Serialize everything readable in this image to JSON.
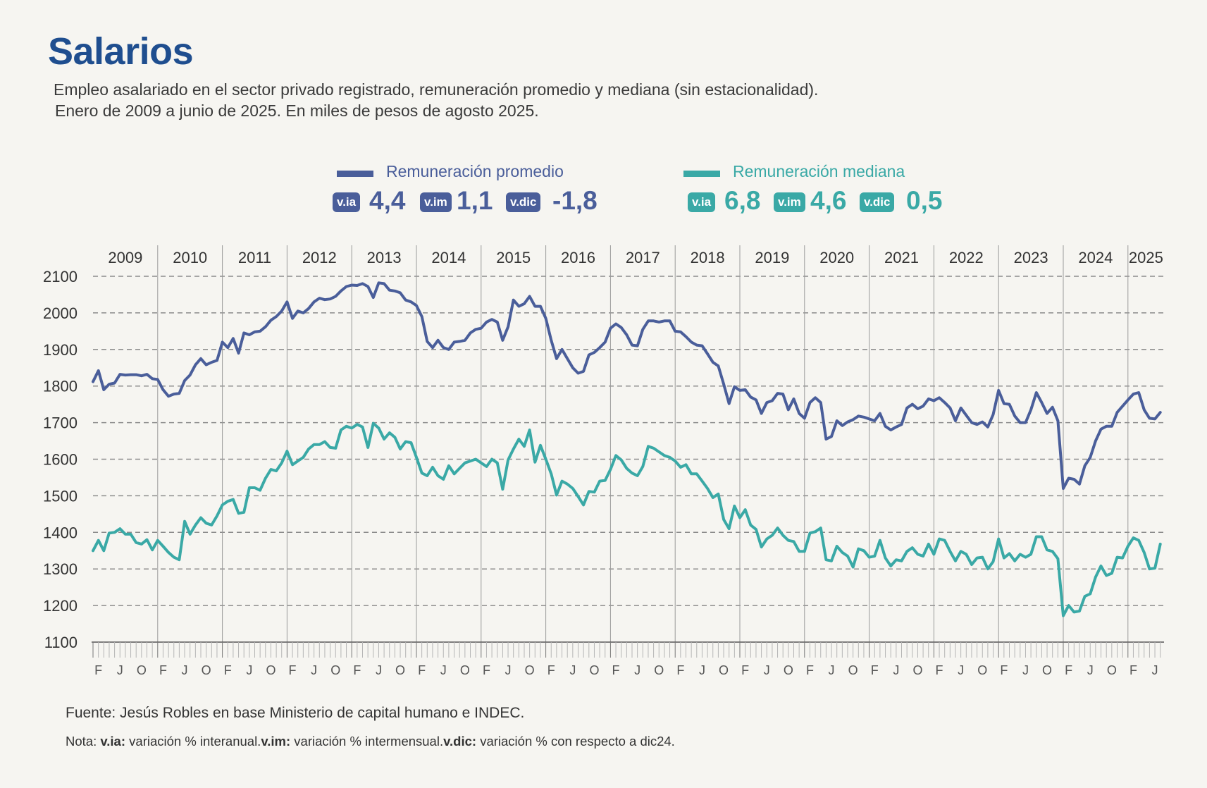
{
  "title": "Salarios",
  "subtitle_line1": "Empleo asalariado en el sector privado registrado, remuneración promedio y mediana (sin estacionalidad).",
  "subtitle_line2": "Enero de 2009 a junio de 2025. En miles de pesos de agosto 2025.",
  "legend": [
    {
      "label": "Remuneración promedio",
      "color": "#4a5e9a",
      "stats": [
        {
          "badge": "v.ia",
          "value": "4,4"
        },
        {
          "badge": "v.im",
          "value": "1,1"
        },
        {
          "badge": "v.dic",
          "value": "-1,8"
        }
      ]
    },
    {
      "label": "Remuneración mediana",
      "color": "#3aa9a6",
      "stats": [
        {
          "badge": "v.ia",
          "value": "6,8"
        },
        {
          "badge": "v.im",
          "value": "4,6"
        },
        {
          "badge": "v.dic",
          "value": "0,5"
        }
      ]
    }
  ],
  "source": "Fuente: Jesús Robles en base Ministerio de capital humano e INDEC.",
  "note": {
    "prefix": "Nota: ",
    "items": [
      {
        "term": "v.ia:",
        "text": " variación % interanual."
      },
      {
        "term": "v.im:",
        "text": " variación % intermensual."
      },
      {
        "term": "v.dic:",
        "text": " variación % con respecto a dic24."
      }
    ]
  },
  "chart_data": {
    "type": "line",
    "x_start": "2009-01",
    "x_end": "2025-06",
    "frequency": "monthly",
    "years": [
      "2009",
      "2010",
      "2011",
      "2012",
      "2013",
      "2014",
      "2015",
      "2016",
      "2017",
      "2018",
      "2019",
      "2020",
      "2021",
      "2022",
      "2023",
      "2024",
      "2025"
    ],
    "month_tick_labels": [
      "F",
      "J",
      "O"
    ],
    "ylim": [
      1100,
      2100
    ],
    "yticks": [
      2100,
      2000,
      1900,
      1800,
      1700,
      1600,
      1500,
      1400,
      1300,
      1200,
      1100
    ],
    "grid": "horizontal dashed",
    "legend_position": "top-center",
    "series": [
      {
        "name": "Remuneración promedio",
        "color": "#4a5e9a",
        "values": [
          1812,
          1842,
          1790,
          1805,
          1808,
          1832,
          1830,
          1831,
          1831,
          1828,
          1832,
          1820,
          1818,
          1790,
          1772,
          1778,
          1780,
          1815,
          1830,
          1858,
          1875,
          1858,
          1865,
          1870,
          1920,
          1905,
          1930,
          1890,
          1945,
          1940,
          1948,
          1950,
          1962,
          1980,
          1990,
          2005,
          2030,
          1985,
          2005,
          2000,
          2012,
          2030,
          2040,
          2036,
          2038,
          2045,
          2060,
          2072,
          2076,
          2075,
          2080,
          2072,
          2042,
          2082,
          2080,
          2062,
          2060,
          2055,
          2035,
          2030,
          2020,
          1990,
          1922,
          1905,
          1925,
          1905,
          1900,
          1920,
          1922,
          1925,
          1945,
          1955,
          1958,
          1975,
          1982,
          1975,
          1925,
          1962,
          2035,
          2018,
          2025,
          2045,
          2018,
          2018,
          1985,
          1925,
          1875,
          1900,
          1875,
          1850,
          1835,
          1840,
          1885,
          1892,
          1905,
          1920,
          1958,
          1970,
          1960,
          1940,
          1912,
          1910,
          1955,
          1978,
          1978,
          1975,
          1978,
          1978,
          1950,
          1948,
          1935,
          1920,
          1912,
          1910,
          1888,
          1865,
          1855,
          1805,
          1752,
          1798,
          1788,
          1790,
          1770,
          1762,
          1725,
          1755,
          1760,
          1780,
          1778,
          1735,
          1765,
          1725,
          1712,
          1755,
          1768,
          1755,
          1655,
          1662,
          1705,
          1692,
          1702,
          1708,
          1718,
          1715,
          1710,
          1705,
          1725,
          1690,
          1680,
          1688,
          1695,
          1740,
          1750,
          1738,
          1745,
          1765,
          1760,
          1768,
          1755,
          1740,
          1705,
          1740,
          1720,
          1700,
          1695,
          1702,
          1688,
          1722,
          1788,
          1752,
          1750,
          1718,
          1700,
          1700,
          1735,
          1782,
          1755,
          1725,
          1742,
          1705,
          1520,
          1548,
          1545,
          1532,
          1582,
          1605,
          1650,
          1682,
          1690,
          1690,
          1728,
          1745,
          1762,
          1778,
          1782,
          1735,
          1712,
          1710,
          1728
        ]
      },
      {
        "name": "Remuneración mediana",
        "color": "#3aa9a6",
        "values": [
          1350,
          1378,
          1350,
          1398,
          1400,
          1410,
          1395,
          1395,
          1372,
          1368,
          1380,
          1352,
          1378,
          1362,
          1345,
          1332,
          1325,
          1430,
          1395,
          1420,
          1440,
          1425,
          1420,
          1445,
          1475,
          1485,
          1490,
          1452,
          1455,
          1522,
          1522,
          1515,
          1548,
          1572,
          1568,
          1590,
          1622,
          1585,
          1595,
          1605,
          1628,
          1640,
          1640,
          1648,
          1632,
          1630,
          1680,
          1690,
          1685,
          1695,
          1688,
          1632,
          1698,
          1685,
          1655,
          1672,
          1660,
          1628,
          1648,
          1645,
          1605,
          1562,
          1555,
          1578,
          1555,
          1545,
          1582,
          1560,
          1575,
          1590,
          1595,
          1600,
          1590,
          1580,
          1600,
          1590,
          1518,
          1598,
          1628,
          1655,
          1635,
          1680,
          1592,
          1638,
          1600,
          1560,
          1502,
          1540,
          1532,
          1520,
          1498,
          1475,
          1512,
          1510,
          1540,
          1542,
          1572,
          1610,
          1598,
          1575,
          1562,
          1555,
          1580,
          1635,
          1630,
          1620,
          1610,
          1605,
          1595,
          1578,
          1585,
          1560,
          1560,
          1540,
          1520,
          1495,
          1505,
          1435,
          1410,
          1472,
          1440,
          1462,
          1420,
          1408,
          1360,
          1382,
          1392,
          1412,
          1392,
          1378,
          1375,
          1348,
          1348,
          1398,
          1402,
          1412,
          1325,
          1322,
          1362,
          1345,
          1335,
          1305,
          1355,
          1350,
          1332,
          1335,
          1378,
          1330,
          1308,
          1325,
          1322,
          1348,
          1358,
          1340,
          1335,
          1368,
          1340,
          1382,
          1378,
          1348,
          1322,
          1348,
          1340,
          1312,
          1330,
          1332,
          1300,
          1320,
          1382,
          1330,
          1342,
          1322,
          1340,
          1332,
          1340,
          1388,
          1388,
          1352,
          1348,
          1328,
          1172,
          1200,
          1182,
          1185,
          1225,
          1232,
          1278,
          1308,
          1282,
          1288,
          1332,
          1330,
          1362,
          1385,
          1378,
          1345,
          1300,
          1302,
          1368
        ]
      }
    ]
  }
}
